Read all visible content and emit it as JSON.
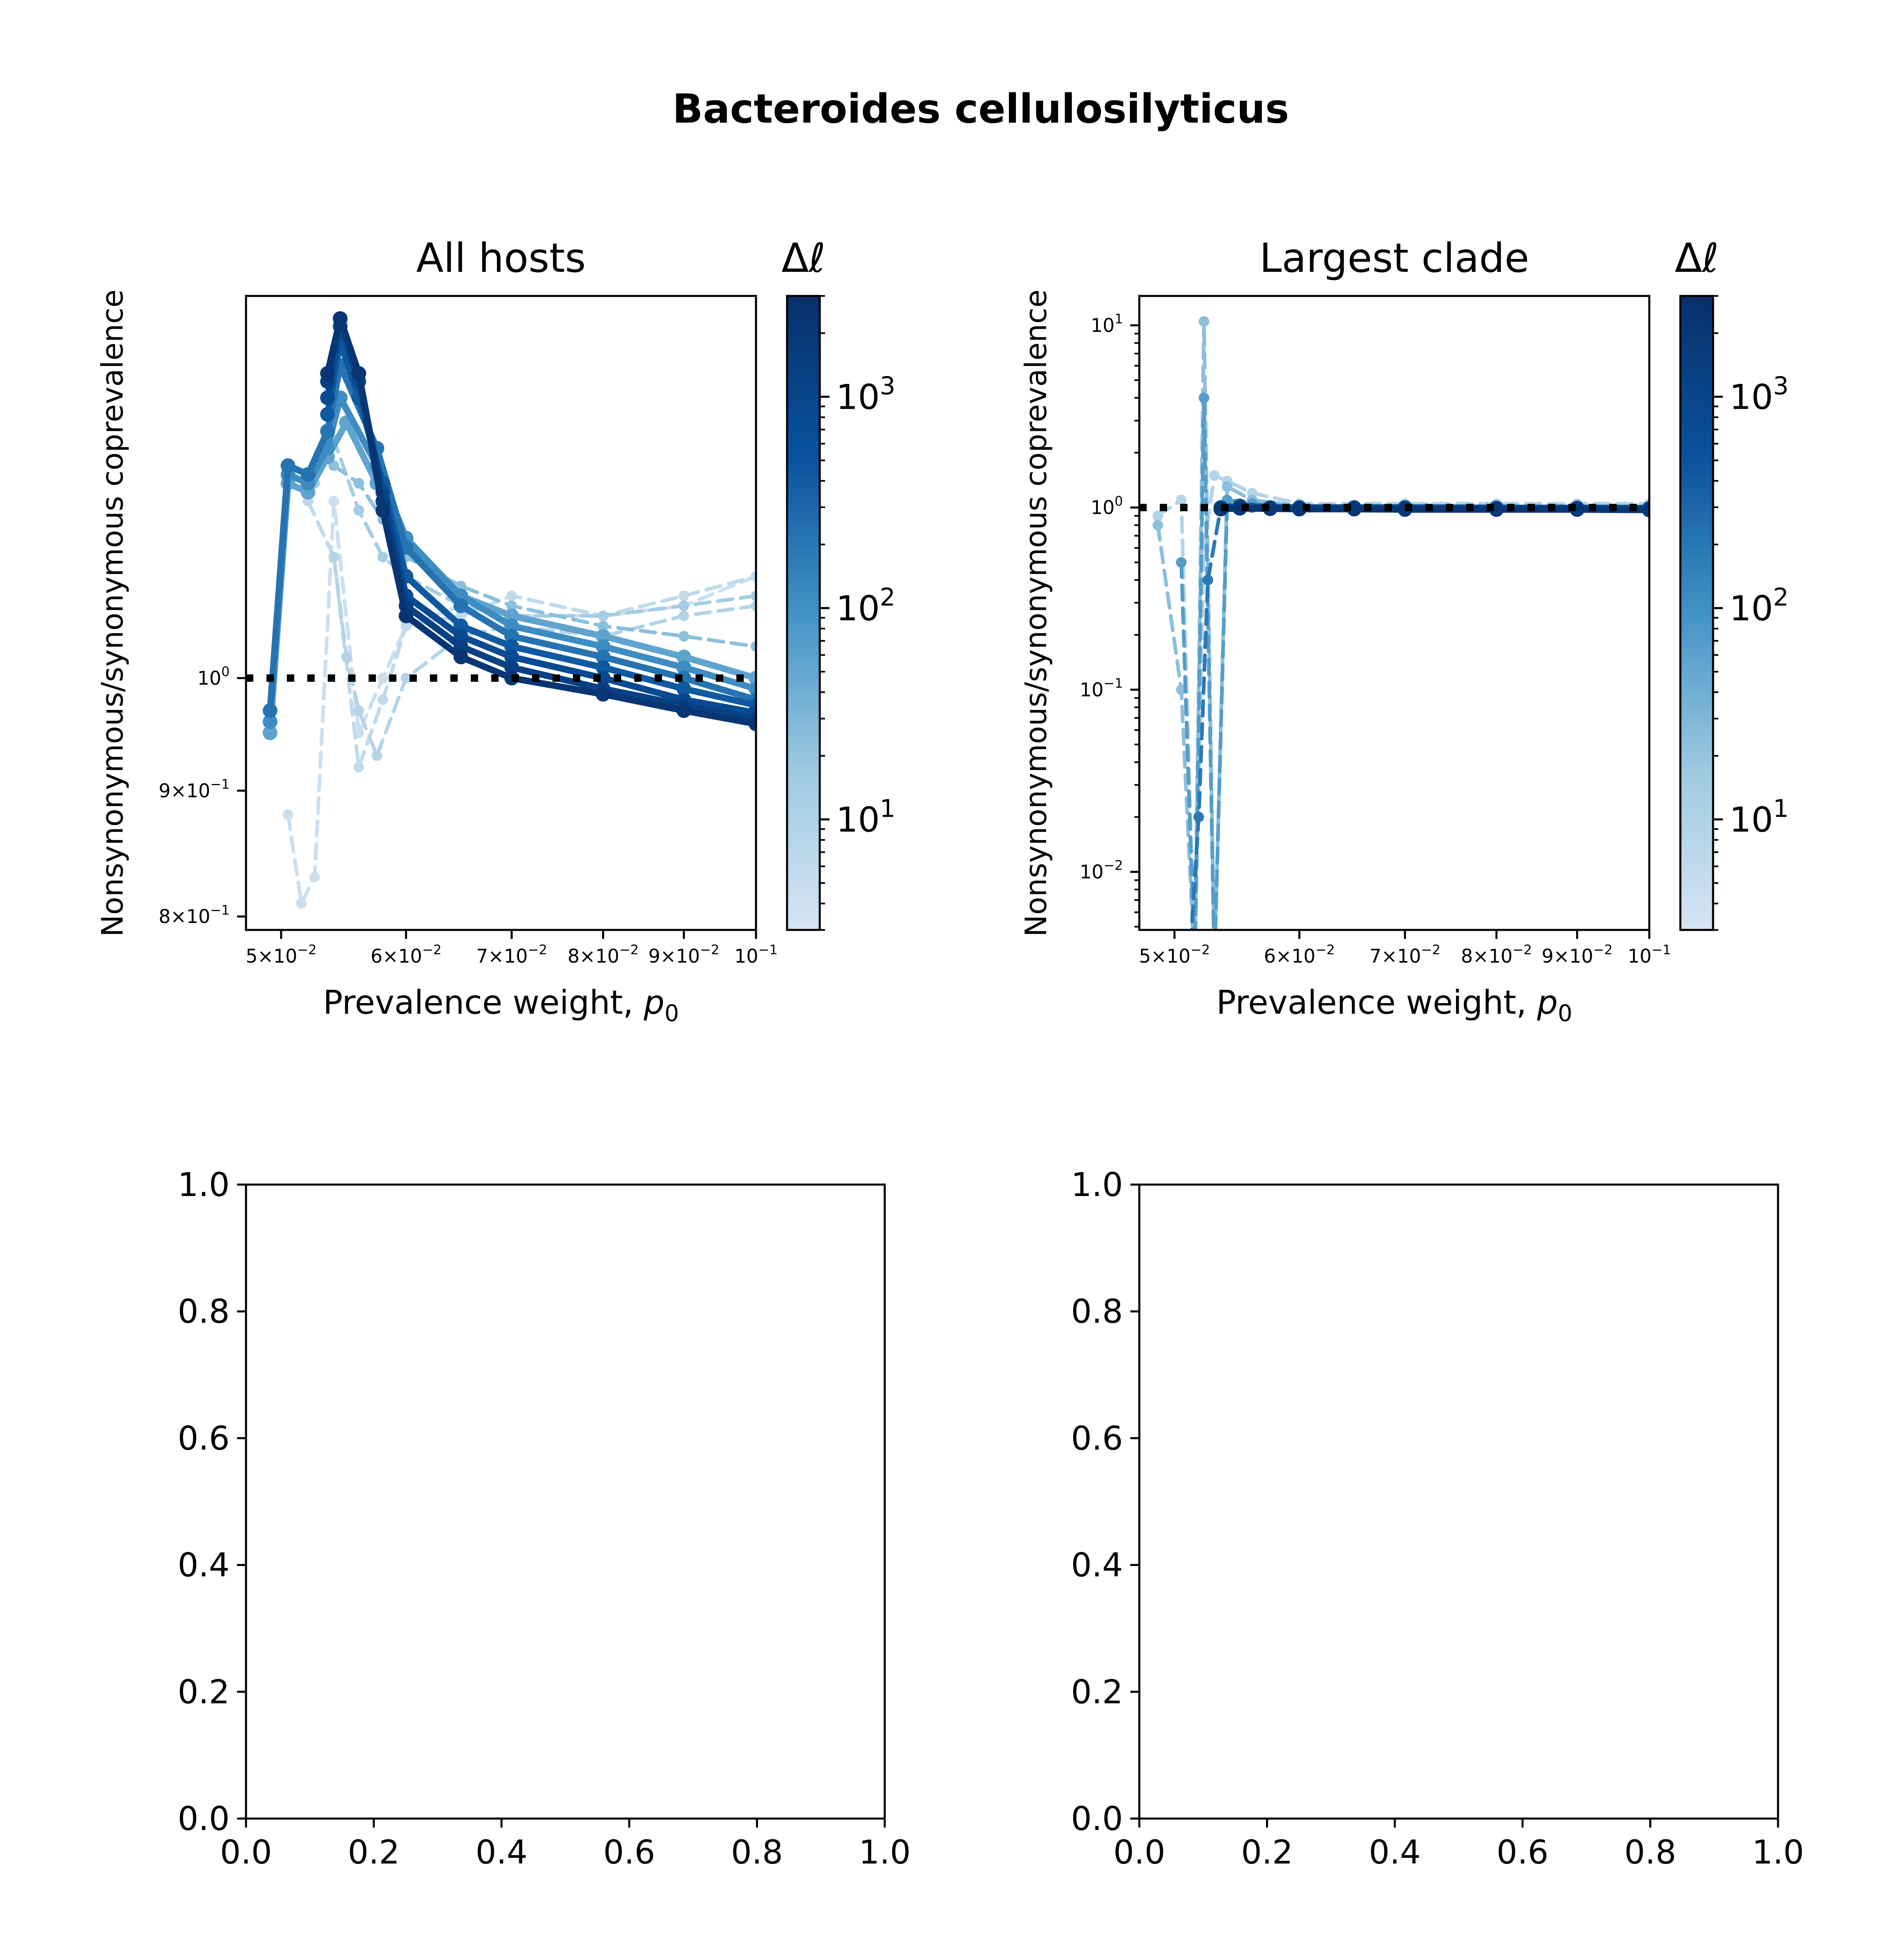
{
  "figure": {
    "suptitle": "Bacteroides cellulosilyticus",
    "colorbar_label": "Δℓ",
    "colorbar_ticks": [
      {
        "base": "10",
        "exp": "3"
      },
      {
        "base": "10",
        "exp": "2"
      },
      {
        "base": "10",
        "exp": "1"
      }
    ],
    "colormap": [
      "#d6e4f3",
      "#9ecae1",
      "#4292c6",
      "#08519c",
      "#08306b"
    ],
    "reference_line_color": "#000000"
  },
  "chart_data": [
    {
      "type": "line",
      "title": "All hosts",
      "xlabel": "Prevalence weight, p₀",
      "xlabel_main": "Prevalence weight, ",
      "xlabel_var": "p",
      "xlabel_sub": "0",
      "ylabel": "Nonsynonymous/synonymous coprevalence",
      "xscale": "log",
      "yscale": "log",
      "xlim": [
        0.0475,
        0.1
      ],
      "ylim": [
        0.79,
        1.43
      ],
      "xticks": [
        {
          "value": 0.05,
          "mant": "5",
          "exp": "−2"
        },
        {
          "value": 0.06,
          "mant": "6",
          "exp": "−2"
        },
        {
          "value": 0.07,
          "mant": "7",
          "exp": "−2"
        },
        {
          "value": 0.08,
          "mant": "8",
          "exp": "−2"
        },
        {
          "value": 0.09,
          "mant": "9",
          "exp": "−2"
        },
        {
          "value": 0.1,
          "mant": "",
          "exp": "−1"
        }
      ],
      "yticks": [
        {
          "value": 1.0,
          "mant": "",
          "exp": "0"
        },
        {
          "value": 0.9,
          "mant": "9",
          "exp": "−1"
        },
        {
          "value": 0.8,
          "mant": "8",
          "exp": "−1"
        }
      ],
      "reference_line": {
        "y": 1.0,
        "style": "dotted"
      },
      "series": [
        {
          "level": 0.05,
          "style": "dashed",
          "x": [
            0.0505,
            0.0515,
            0.0525,
            0.054,
            0.056,
            0.058,
            0.06,
            0.065,
            0.07,
            0.08,
            0.09,
            0.1
          ],
          "y": [
            0.88,
            0.81,
            0.83,
            1.18,
            0.95,
            1.0,
            1.05,
            1.07,
            1.06,
            1.06,
            1.07,
            1.1
          ]
        },
        {
          "level": 0.1,
          "style": "dashed",
          "x": [
            0.052,
            0.054,
            0.056,
            0.058,
            0.06,
            0.065,
            0.07,
            0.08,
            0.09,
            0.1
          ],
          "y": [
            1.18,
            1.12,
            0.92,
            0.98,
            1.05,
            1.06,
            1.08,
            1.06,
            1.08,
            1.1
          ]
        },
        {
          "level": 0.15,
          "style": "dashed",
          "x": [
            0.054,
            0.055,
            0.056,
            0.0575,
            0.06,
            0.065,
            0.07,
            0.08,
            0.09,
            0.1
          ],
          "y": [
            1.12,
            1.02,
            0.97,
            0.93,
            1.0,
            1.04,
            1.05,
            1.04,
            1.06,
            1.07
          ]
        },
        {
          "level": 0.22,
          "style": "dashed",
          "x": [
            0.0525,
            0.054,
            0.056,
            0.058,
            0.06,
            0.065,
            0.07,
            0.08,
            0.09,
            0.1
          ],
          "y": [
            1.2,
            1.25,
            1.17,
            1.12,
            1.1,
            1.07,
            1.06,
            1.06,
            1.07,
            1.08
          ]
        },
        {
          "level": 0.3,
          "style": "dashed",
          "x": [
            0.054,
            0.056,
            0.058,
            0.06,
            0.065,
            0.07,
            0.08,
            0.09,
            0.1
          ],
          "y": [
            1.22,
            1.2,
            1.16,
            1.12,
            1.09,
            1.07,
            1.05,
            1.04,
            1.03
          ]
        },
        {
          "level": 0.42,
          "style": "solid",
          "x": [
            0.0492,
            0.0505,
            0.052,
            0.0535,
            0.055,
            0.0575,
            0.06,
            0.065,
            0.07,
            0.08,
            0.09,
            0.1
          ],
          "y": [
            0.95,
            1.2,
            1.19,
            1.23,
            1.27,
            1.2,
            1.13,
            1.08,
            1.06,
            1.04,
            1.02,
            1.0
          ]
        },
        {
          "level": 0.52,
          "style": "solid",
          "x": [
            0.0492,
            0.0505,
            0.052,
            0.0535,
            0.0545,
            0.0575,
            0.06,
            0.065,
            0.07,
            0.08,
            0.09,
            0.1
          ],
          "y": [
            0.96,
            1.21,
            1.2,
            1.24,
            1.3,
            1.22,
            1.14,
            1.08,
            1.05,
            1.03,
            1.01,
            0.99
          ]
        },
        {
          "level": 0.62,
          "style": "solid",
          "x": [
            0.0492,
            0.0505,
            0.052,
            0.0535,
            0.0545,
            0.0575,
            0.06,
            0.065,
            0.07,
            0.08,
            0.09,
            0.1
          ],
          "y": [
            0.97,
            1.22,
            1.21,
            1.26,
            1.34,
            1.24,
            1.13,
            1.07,
            1.04,
            1.02,
            1.0,
            0.98
          ]
        },
        {
          "level": 0.72,
          "style": "solid",
          "x": [
            0.0535,
            0.0545,
            0.056,
            0.058,
            0.06,
            0.065,
            0.07,
            0.08,
            0.09,
            0.1
          ],
          "y": [
            1.28,
            1.37,
            1.3,
            1.2,
            1.1,
            1.05,
            1.03,
            1.01,
            0.99,
            0.975
          ]
        },
        {
          "level": 0.8,
          "style": "solid",
          "x": [
            0.0535,
            0.0545,
            0.056,
            0.058,
            0.06,
            0.065,
            0.07,
            0.08,
            0.09,
            0.1
          ],
          "y": [
            1.3,
            1.39,
            1.32,
            1.19,
            1.08,
            1.04,
            1.02,
            1.0,
            0.98,
            0.968
          ]
        },
        {
          "level": 0.88,
          "style": "solid",
          "x": [
            0.0535,
            0.0545,
            0.056,
            0.058,
            0.06,
            0.065,
            0.07,
            0.08,
            0.09,
            0.1
          ],
          "y": [
            1.32,
            1.4,
            1.33,
            1.18,
            1.07,
            1.03,
            1.01,
            0.99,
            0.975,
            0.962
          ]
        },
        {
          "level": 0.96,
          "style": "solid",
          "x": [
            0.0535,
            0.0545,
            0.056,
            0.058,
            0.06,
            0.065,
            0.07,
            0.08,
            0.09,
            0.1
          ],
          "y": [
            1.33,
            1.4,
            1.33,
            1.17,
            1.06,
            1.02,
            1.0,
            0.985,
            0.97,
            0.958
          ]
        }
      ]
    },
    {
      "type": "line",
      "title": "Largest clade",
      "xlabel": "Prevalence weight, p₀",
      "xlabel_main": "Prevalence weight, ",
      "xlabel_var": "p",
      "xlabel_sub": "0",
      "ylabel": "Nonsynonymous/synonymous coprevalence",
      "xscale": "log",
      "yscale": "log",
      "xlim": [
        0.0475,
        0.1
      ],
      "ylim": [
        0.0048,
        14.5
      ],
      "xticks": [
        {
          "value": 0.05,
          "mant": "5",
          "exp": "−2"
        },
        {
          "value": 0.06,
          "mant": "6",
          "exp": "−2"
        },
        {
          "value": 0.07,
          "mant": "7",
          "exp": "−2"
        },
        {
          "value": 0.08,
          "mant": "8",
          "exp": "−2"
        },
        {
          "value": 0.09,
          "mant": "9",
          "exp": "−2"
        },
        {
          "value": 0.1,
          "mant": "",
          "exp": "−1"
        }
      ],
      "yticks": [
        {
          "value": 10,
          "mant": "",
          "exp": "1"
        },
        {
          "value": 1,
          "mant": "",
          "exp": "0"
        },
        {
          "value": 0.1,
          "mant": "",
          "exp": "−1"
        },
        {
          "value": 0.01,
          "mant": "",
          "exp": "−2"
        }
      ],
      "reference_line": {
        "y": 1.0,
        "style": "dotted"
      },
      "series": [
        {
          "level": 0.15,
          "style": "dashed",
          "x": [
            0.0488,
            0.0505,
            0.0515,
            0.0522,
            0.053,
            0.054,
            0.056,
            0.06,
            0.07,
            0.08,
            0.09,
            0.1
          ],
          "y": [
            0.9,
            1.1,
            0.003,
            0.6,
            1.5,
            1.4,
            1.2,
            1.05,
            1.05,
            1.05,
            1.05,
            1.05
          ]
        },
        {
          "level": 0.3,
          "style": "dashed",
          "x": [
            0.0488,
            0.0505,
            0.0515,
            0.0522,
            0.053,
            0.054,
            0.056,
            0.06,
            0.07,
            0.08,
            0.09,
            0.1
          ],
          "y": [
            0.8,
            0.1,
            0.003,
            10.5,
            0.003,
            1.3,
            1.1,
            1.02,
            1.02,
            1.02,
            1.02,
            1.02
          ]
        },
        {
          "level": 0.45,
          "style": "dashed",
          "x": [
            0.0505,
            0.0515,
            0.0522,
            0.053,
            0.054,
            0.056,
            0.06,
            0.07,
            0.08,
            0.09,
            0.1
          ],
          "y": [
            0.5,
            0.003,
            4.0,
            0.003,
            1.1,
            1.05,
            1.01,
            1.01,
            1.01,
            1.01,
            1.01
          ]
        },
        {
          "level": 0.6,
          "style": "dashed",
          "x": [
            0.0512,
            0.0518,
            0.0525,
            0.0535,
            0.056,
            0.06,
            0.07,
            0.08,
            0.09,
            0.1
          ],
          "y": [
            0.004,
            0.02,
            0.4,
            1.0,
            1.0,
            1.0,
            1.0,
            1.0,
            1.0,
            1.0
          ]
        },
        {
          "level": 0.8,
          "style": "solid",
          "x": [
            0.0535,
            0.055,
            0.0575,
            0.06,
            0.065,
            0.07,
            0.08,
            0.09,
            0.1
          ],
          "y": [
            1.0,
            1.02,
            1.0,
            1.0,
            1.0,
            1.0,
            0.995,
            0.995,
            0.99
          ]
        },
        {
          "level": 0.95,
          "style": "solid",
          "x": [
            0.0535,
            0.055,
            0.0575,
            0.06,
            0.065,
            0.07,
            0.08,
            0.09,
            0.1
          ],
          "y": [
            0.98,
            0.99,
            0.985,
            0.98,
            0.98,
            0.975,
            0.975,
            0.975,
            0.97
          ]
        }
      ]
    },
    {
      "type": "line",
      "title": "",
      "xlim": [
        0.0,
        1.0
      ],
      "ylim": [
        0.0,
        1.0
      ],
      "xticks": [
        "0.0",
        "0.2",
        "0.4",
        "0.6",
        "0.8",
        "1.0"
      ],
      "yticks": [
        "0.0",
        "0.2",
        "0.4",
        "0.6",
        "0.8",
        "1.0"
      ],
      "series": []
    },
    {
      "type": "line",
      "title": "",
      "xlim": [
        0.0,
        1.0
      ],
      "ylim": [
        0.0,
        1.0
      ],
      "xticks": [
        "0.0",
        "0.2",
        "0.4",
        "0.6",
        "0.8",
        "1.0"
      ],
      "yticks": [
        "0.0",
        "0.2",
        "0.4",
        "0.6",
        "0.8",
        "1.0"
      ],
      "series": []
    }
  ]
}
